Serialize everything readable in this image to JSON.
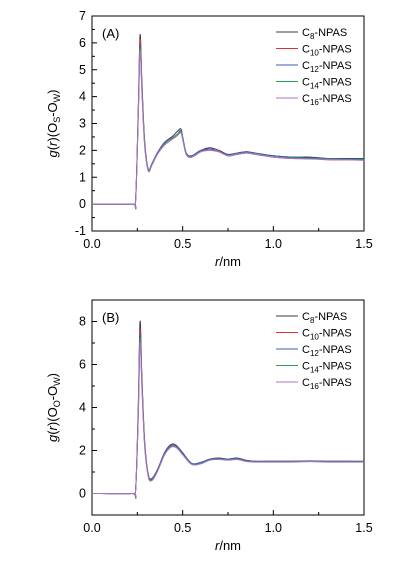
{
  "chart_data": [
    {
      "type": "line",
      "title": "",
      "panel_label": "(A)",
      "xlabel": {
        "var": "r",
        "unit": "/nm"
      },
      "ylabel": {
        "g": "g",
        "r": "r",
        "rest": "(O",
        "sub1": "S",
        "dash": "-O",
        "sub2": "W",
        "close": ")"
      },
      "xlim": [
        0.0,
        1.5
      ],
      "ylim": [
        -1,
        7
      ],
      "xticks": [
        "0.0",
        "0.5",
        "1.0",
        "1.5"
      ],
      "yticks": [
        "-1",
        "0",
        "1",
        "2",
        "3",
        "4",
        "5",
        "6",
        "7"
      ],
      "legend_position": "top-right",
      "series": [
        {
          "name_base": "C",
          "name_sub": "8",
          "name_suffix": "-NPAS",
          "color": "#3c3c3c",
          "x": [
            0.0,
            0.22,
            0.24,
            0.255,
            0.265,
            0.275,
            0.29,
            0.31,
            0.33,
            0.36,
            0.4,
            0.44,
            0.47,
            0.49,
            0.5,
            0.52,
            0.55,
            0.6,
            0.65,
            0.7,
            0.75,
            0.8,
            0.85,
            0.9,
            1.0,
            1.1,
            1.2,
            1.3,
            1.4,
            1.5
          ],
          "y": [
            0.0,
            0.0,
            0.1,
            3.5,
            6.3,
            4.6,
            2.4,
            1.3,
            1.5,
            1.9,
            2.3,
            2.5,
            2.7,
            2.8,
            2.5,
            1.9,
            1.8,
            2.0,
            2.1,
            2.0,
            1.85,
            1.9,
            1.95,
            1.9,
            1.8,
            1.75,
            1.75,
            1.7,
            1.7,
            1.7
          ]
        },
        {
          "name_base": "C",
          "name_sub": "10",
          "name_suffix": "-NPAS",
          "color": "#e03030",
          "x": [
            0.0,
            0.22,
            0.24,
            0.255,
            0.265,
            0.275,
            0.29,
            0.31,
            0.33,
            0.36,
            0.4,
            0.44,
            0.47,
            0.49,
            0.5,
            0.52,
            0.55,
            0.6,
            0.65,
            0.7,
            0.75,
            0.8,
            0.85,
            0.9,
            1.0,
            1.1,
            1.2,
            1.3,
            1.4,
            1.5
          ],
          "y": [
            0.0,
            0.0,
            0.1,
            3.4,
            6.1,
            4.5,
            2.3,
            1.25,
            1.45,
            1.85,
            2.2,
            2.4,
            2.55,
            2.7,
            2.45,
            1.85,
            1.75,
            1.95,
            2.05,
            1.95,
            1.8,
            1.85,
            1.9,
            1.85,
            1.75,
            1.7,
            1.7,
            1.65,
            1.65,
            1.65
          ]
        },
        {
          "name_base": "C",
          "name_sub": "12",
          "name_suffix": "-NPAS",
          "color": "#3a5fb0",
          "x": [
            0.0,
            0.22,
            0.24,
            0.255,
            0.265,
            0.275,
            0.29,
            0.31,
            0.33,
            0.36,
            0.4,
            0.44,
            0.47,
            0.49,
            0.5,
            0.52,
            0.55,
            0.6,
            0.65,
            0.7,
            0.75,
            0.8,
            0.85,
            0.9,
            1.0,
            1.1,
            1.2,
            1.3,
            1.4,
            1.5
          ],
          "y": [
            0.0,
            0.0,
            0.1,
            3.3,
            5.9,
            4.4,
            2.3,
            1.3,
            1.5,
            1.9,
            2.3,
            2.45,
            2.6,
            2.75,
            2.5,
            1.9,
            1.8,
            2.0,
            2.05,
            1.95,
            1.85,
            1.9,
            1.95,
            1.9,
            1.8,
            1.75,
            1.72,
            1.7,
            1.68,
            1.68
          ]
        },
        {
          "name_base": "C",
          "name_sub": "14",
          "name_suffix": "-NPAS",
          "color": "#2aa05a",
          "x": [
            0.0,
            0.22,
            0.24,
            0.255,
            0.265,
            0.275,
            0.29,
            0.31,
            0.33,
            0.36,
            0.4,
            0.44,
            0.47,
            0.49,
            0.5,
            0.52,
            0.55,
            0.6,
            0.65,
            0.7,
            0.75,
            0.8,
            0.85,
            0.9,
            1.0,
            1.1,
            1.2,
            1.3,
            1.4,
            1.5
          ],
          "y": [
            0.0,
            0.0,
            0.1,
            3.3,
            5.8,
            4.3,
            2.25,
            1.25,
            1.45,
            1.85,
            2.25,
            2.45,
            2.6,
            2.7,
            2.45,
            1.85,
            1.75,
            1.95,
            2.0,
            1.95,
            1.8,
            1.85,
            1.9,
            1.85,
            1.75,
            1.72,
            1.7,
            1.68,
            1.66,
            1.65
          ]
        },
        {
          "name_base": "C",
          "name_sub": "16",
          "name_suffix": "-NPAS",
          "color": "#b070c8",
          "x": [
            0.0,
            0.22,
            0.24,
            0.255,
            0.265,
            0.275,
            0.29,
            0.31,
            0.33,
            0.36,
            0.4,
            0.44,
            0.47,
            0.49,
            0.5,
            0.52,
            0.55,
            0.6,
            0.65,
            0.7,
            0.75,
            0.8,
            0.85,
            0.9,
            1.0,
            1.1,
            1.2,
            1.3,
            1.4,
            1.5
          ],
          "y": [
            0.0,
            0.0,
            0.1,
            3.2,
            5.7,
            4.2,
            2.2,
            1.25,
            1.45,
            1.85,
            2.2,
            2.4,
            2.55,
            2.65,
            2.4,
            1.85,
            1.75,
            1.95,
            2.0,
            1.95,
            1.8,
            1.85,
            1.9,
            1.85,
            1.75,
            1.7,
            1.68,
            1.66,
            1.65,
            1.63
          ]
        }
      ]
    },
    {
      "type": "line",
      "title": "",
      "panel_label": "(B)",
      "xlabel": {
        "var": "r",
        "unit": "/nm"
      },
      "ylabel": {
        "g": "g",
        "r": "r",
        "rest": "(O",
        "sub1": "O",
        "dash": "-O",
        "sub2": "W",
        "close": ")"
      },
      "xlim": [
        0.0,
        1.5
      ],
      "ylim": [
        -1,
        9
      ],
      "xticks": [
        "0.0",
        "0.5",
        "1.0",
        "1.5"
      ],
      "yticks": [
        "0",
        "2",
        "4",
        "6",
        "8"
      ],
      "legend_position": "top-right",
      "series": [
        {
          "name_base": "C",
          "name_sub": "8",
          "name_suffix": "-NPAS",
          "color": "#3c3c3c",
          "x": [
            0.0,
            0.22,
            0.24,
            0.255,
            0.265,
            0.275,
            0.29,
            0.31,
            0.33,
            0.36,
            0.4,
            0.43,
            0.45,
            0.47,
            0.5,
            0.55,
            0.6,
            0.65,
            0.7,
            0.75,
            0.8,
            0.85,
            0.9,
            1.0,
            1.1,
            1.2,
            1.3,
            1.4,
            1.5
          ],
          "y": [
            0.0,
            0.0,
            0.1,
            4.0,
            8.0,
            5.5,
            2.5,
            0.9,
            0.7,
            1.1,
            1.9,
            2.25,
            2.3,
            2.2,
            1.9,
            1.4,
            1.45,
            1.6,
            1.65,
            1.6,
            1.65,
            1.55,
            1.5,
            1.5,
            1.5,
            1.52,
            1.5,
            1.5,
            1.5
          ]
        },
        {
          "name_base": "C",
          "name_sub": "10",
          "name_suffix": "-NPAS",
          "color": "#e03030",
          "x": [
            0.0,
            0.22,
            0.24,
            0.255,
            0.265,
            0.275,
            0.29,
            0.31,
            0.33,
            0.36,
            0.4,
            0.43,
            0.45,
            0.47,
            0.5,
            0.55,
            0.6,
            0.65,
            0.7,
            0.75,
            0.8,
            0.85,
            0.9,
            1.0,
            1.1,
            1.2,
            1.3,
            1.4,
            1.5
          ],
          "y": [
            0.0,
            0.0,
            0.1,
            3.8,
            7.6,
            5.3,
            2.4,
            0.85,
            0.65,
            1.05,
            1.85,
            2.2,
            2.25,
            2.15,
            1.85,
            1.38,
            1.42,
            1.58,
            1.62,
            1.58,
            1.62,
            1.52,
            1.48,
            1.48,
            1.48,
            1.5,
            1.48,
            1.48,
            1.48
          ]
        },
        {
          "name_base": "C",
          "name_sub": "12",
          "name_suffix": "-NPAS",
          "color": "#3a5fb0",
          "x": [
            0.0,
            0.22,
            0.24,
            0.255,
            0.265,
            0.275,
            0.29,
            0.31,
            0.33,
            0.36,
            0.4,
            0.43,
            0.45,
            0.47,
            0.5,
            0.55,
            0.6,
            0.65,
            0.7,
            0.75,
            0.8,
            0.85,
            0.9,
            1.0,
            1.1,
            1.2,
            1.3,
            1.4,
            1.5
          ],
          "y": [
            0.0,
            0.0,
            0.1,
            3.7,
            7.4,
            5.2,
            2.35,
            0.85,
            0.68,
            1.08,
            1.9,
            2.22,
            2.28,
            2.18,
            1.88,
            1.4,
            1.44,
            1.6,
            1.64,
            1.6,
            1.64,
            1.54,
            1.5,
            1.5,
            1.5,
            1.51,
            1.5,
            1.5,
            1.49
          ]
        },
        {
          "name_base": "C",
          "name_sub": "14",
          "name_suffix": "-NPAS",
          "color": "#2aa05a",
          "x": [
            0.0,
            0.22,
            0.24,
            0.255,
            0.265,
            0.275,
            0.29,
            0.31,
            0.33,
            0.36,
            0.4,
            0.43,
            0.45,
            0.47,
            0.5,
            0.55,
            0.6,
            0.65,
            0.7,
            0.75,
            0.8,
            0.85,
            0.9,
            1.0,
            1.1,
            1.2,
            1.3,
            1.4,
            1.5
          ],
          "y": [
            0.0,
            0.0,
            0.1,
            3.6,
            7.2,
            5.1,
            2.3,
            0.8,
            0.62,
            1.02,
            1.82,
            2.15,
            2.2,
            2.12,
            1.82,
            1.36,
            1.4,
            1.56,
            1.6,
            1.56,
            1.6,
            1.5,
            1.47,
            1.47,
            1.47,
            1.49,
            1.47,
            1.47,
            1.47
          ]
        },
        {
          "name_base": "C",
          "name_sub": "16",
          "name_suffix": "-NPAS",
          "color": "#b070c8",
          "x": [
            0.0,
            0.22,
            0.24,
            0.255,
            0.265,
            0.275,
            0.29,
            0.31,
            0.33,
            0.36,
            0.4,
            0.43,
            0.45,
            0.47,
            0.5,
            0.55,
            0.6,
            0.65,
            0.7,
            0.75,
            0.8,
            0.85,
            0.9,
            1.0,
            1.1,
            1.2,
            1.3,
            1.4,
            1.5
          ],
          "y": [
            0.0,
            0.0,
            0.1,
            3.5,
            7.0,
            5.0,
            2.25,
            0.8,
            0.6,
            1.0,
            1.8,
            2.12,
            2.18,
            2.1,
            1.8,
            1.35,
            1.38,
            1.55,
            1.58,
            1.55,
            1.58,
            1.49,
            1.46,
            1.46,
            1.46,
            1.48,
            1.46,
            1.46,
            1.46
          ]
        }
      ]
    }
  ]
}
